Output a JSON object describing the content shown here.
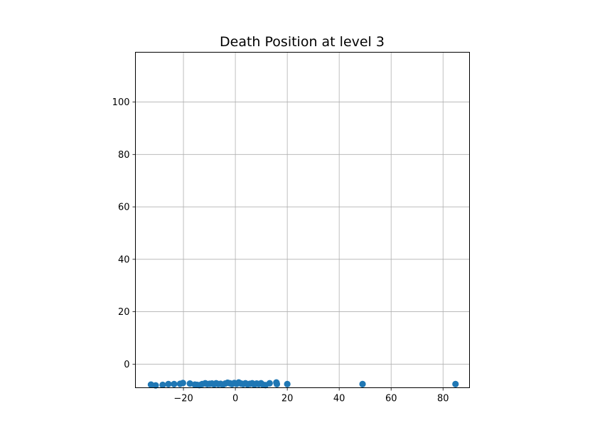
{
  "chart_data": {
    "type": "scatter",
    "title": "Death Position at level 3",
    "xlabel": "",
    "ylabel": "",
    "xlim": [
      -38.5,
      90.2
    ],
    "ylim": [
      -9,
      119
    ],
    "x_ticks": [
      -20,
      0,
      20,
      40,
      60,
      80
    ],
    "y_ticks": [
      0,
      20,
      40,
      60,
      80,
      100
    ],
    "x_tick_labels": [
      "−20",
      "0",
      "20",
      "40",
      "60",
      "80"
    ],
    "y_tick_labels": [
      "0",
      "20",
      "40",
      "60",
      "80",
      "100"
    ],
    "grid": true,
    "marker_color": "#1f77b4",
    "points": [
      {
        "x": -32.5,
        "y": -7.8
      },
      {
        "x": -30.7,
        "y": -8.1
      },
      {
        "x": -28.0,
        "y": -7.9
      },
      {
        "x": -25.8,
        "y": -7.6
      },
      {
        "x": -23.6,
        "y": -7.6
      },
      {
        "x": -21.3,
        "y": -7.5
      },
      {
        "x": -20.2,
        "y": -7.2
      },
      {
        "x": -17.5,
        "y": -7.4
      },
      {
        "x": -15.6,
        "y": -7.8
      },
      {
        "x": -14.8,
        "y": -7.9
      },
      {
        "x": -13.9,
        "y": -8.0
      },
      {
        "x": -12.8,
        "y": -7.6
      },
      {
        "x": -11.6,
        "y": -7.3
      },
      {
        "x": -10.8,
        "y": -7.6
      },
      {
        "x": -9.9,
        "y": -7.5
      },
      {
        "x": -9.0,
        "y": -7.4
      },
      {
        "x": -8.2,
        "y": -7.7
      },
      {
        "x": -7.4,
        "y": -7.3
      },
      {
        "x": -6.6,
        "y": -7.6
      },
      {
        "x": -5.7,
        "y": -7.5
      },
      {
        "x": -4.8,
        "y": -7.8
      },
      {
        "x": -3.9,
        "y": -7.4
      },
      {
        "x": -3.0,
        "y": -7.1
      },
      {
        "x": -2.1,
        "y": -7.3
      },
      {
        "x": -1.3,
        "y": -7.6
      },
      {
        "x": -0.4,
        "y": -7.2
      },
      {
        "x": 0.5,
        "y": -7.5
      },
      {
        "x": 1.3,
        "y": -7.0
      },
      {
        "x": 2.2,
        "y": -7.4
      },
      {
        "x": 3.0,
        "y": -7.6
      },
      {
        "x": 3.9,
        "y": -7.3
      },
      {
        "x": 4.7,
        "y": -7.7
      },
      {
        "x": 5.6,
        "y": -7.5
      },
      {
        "x": 6.5,
        "y": -7.3
      },
      {
        "x": 7.3,
        "y": -7.8
      },
      {
        "x": 8.2,
        "y": -7.4
      },
      {
        "x": 9.0,
        "y": -7.6
      },
      {
        "x": 9.9,
        "y": -7.3
      },
      {
        "x": 10.8,
        "y": -7.9
      },
      {
        "x": 11.6,
        "y": -8.0
      },
      {
        "x": 13.2,
        "y": -7.3
      },
      {
        "x": 15.8,
        "y": -7.0
      },
      {
        "x": 16.0,
        "y": -7.6
      },
      {
        "x": 20.0,
        "y": -7.6
      },
      {
        "x": 49.0,
        "y": -7.6
      },
      {
        "x": 84.8,
        "y": -7.6
      }
    ]
  }
}
